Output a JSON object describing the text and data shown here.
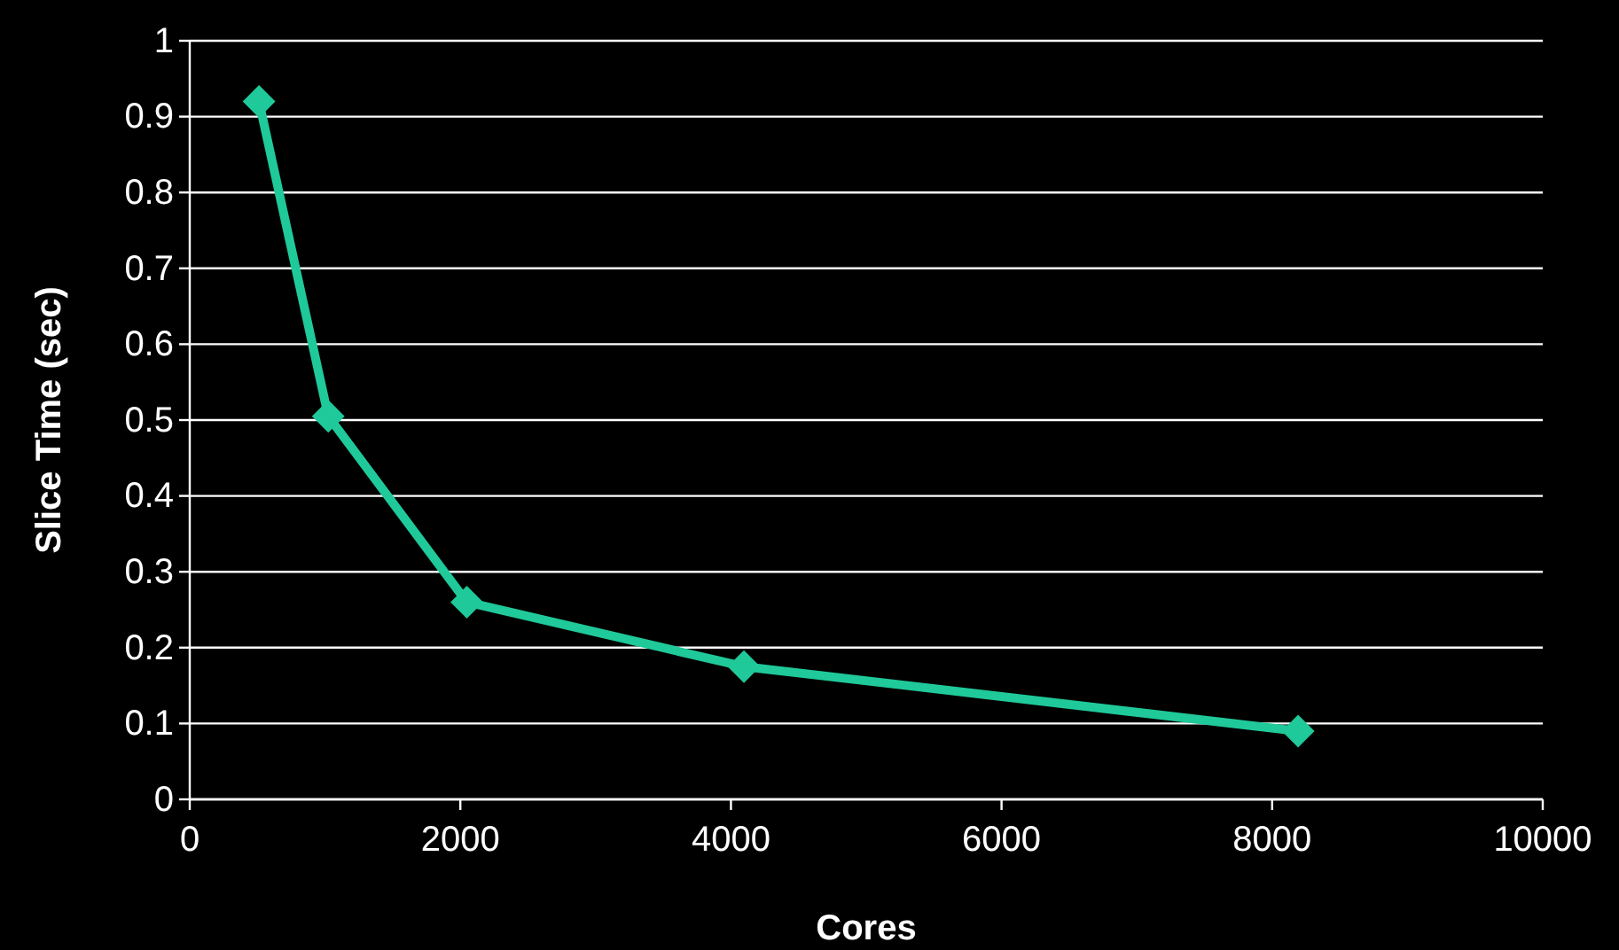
{
  "chart_data": {
    "type": "line",
    "xlabel": "Cores",
    "ylabel": "Slice Time (sec)",
    "x": [
      512,
      1024,
      2048,
      4096,
      8192
    ],
    "series": [
      {
        "color": "#1fc99a",
        "values": [
          0.92,
          0.505,
          0.26,
          0.175,
          0.09
        ]
      }
    ],
    "xlim": [
      0,
      10000
    ],
    "xticks": [
      0,
      2000,
      4000,
      6000,
      8000,
      10000
    ],
    "ylim": [
      0,
      1
    ],
    "yticks": [
      0,
      0.1,
      0.2,
      0.3,
      0.4,
      0.5,
      0.6,
      0.7,
      0.8,
      0.9,
      1
    ],
    "grid": "y",
    "marker": "diamond",
    "line_style": "solid"
  }
}
